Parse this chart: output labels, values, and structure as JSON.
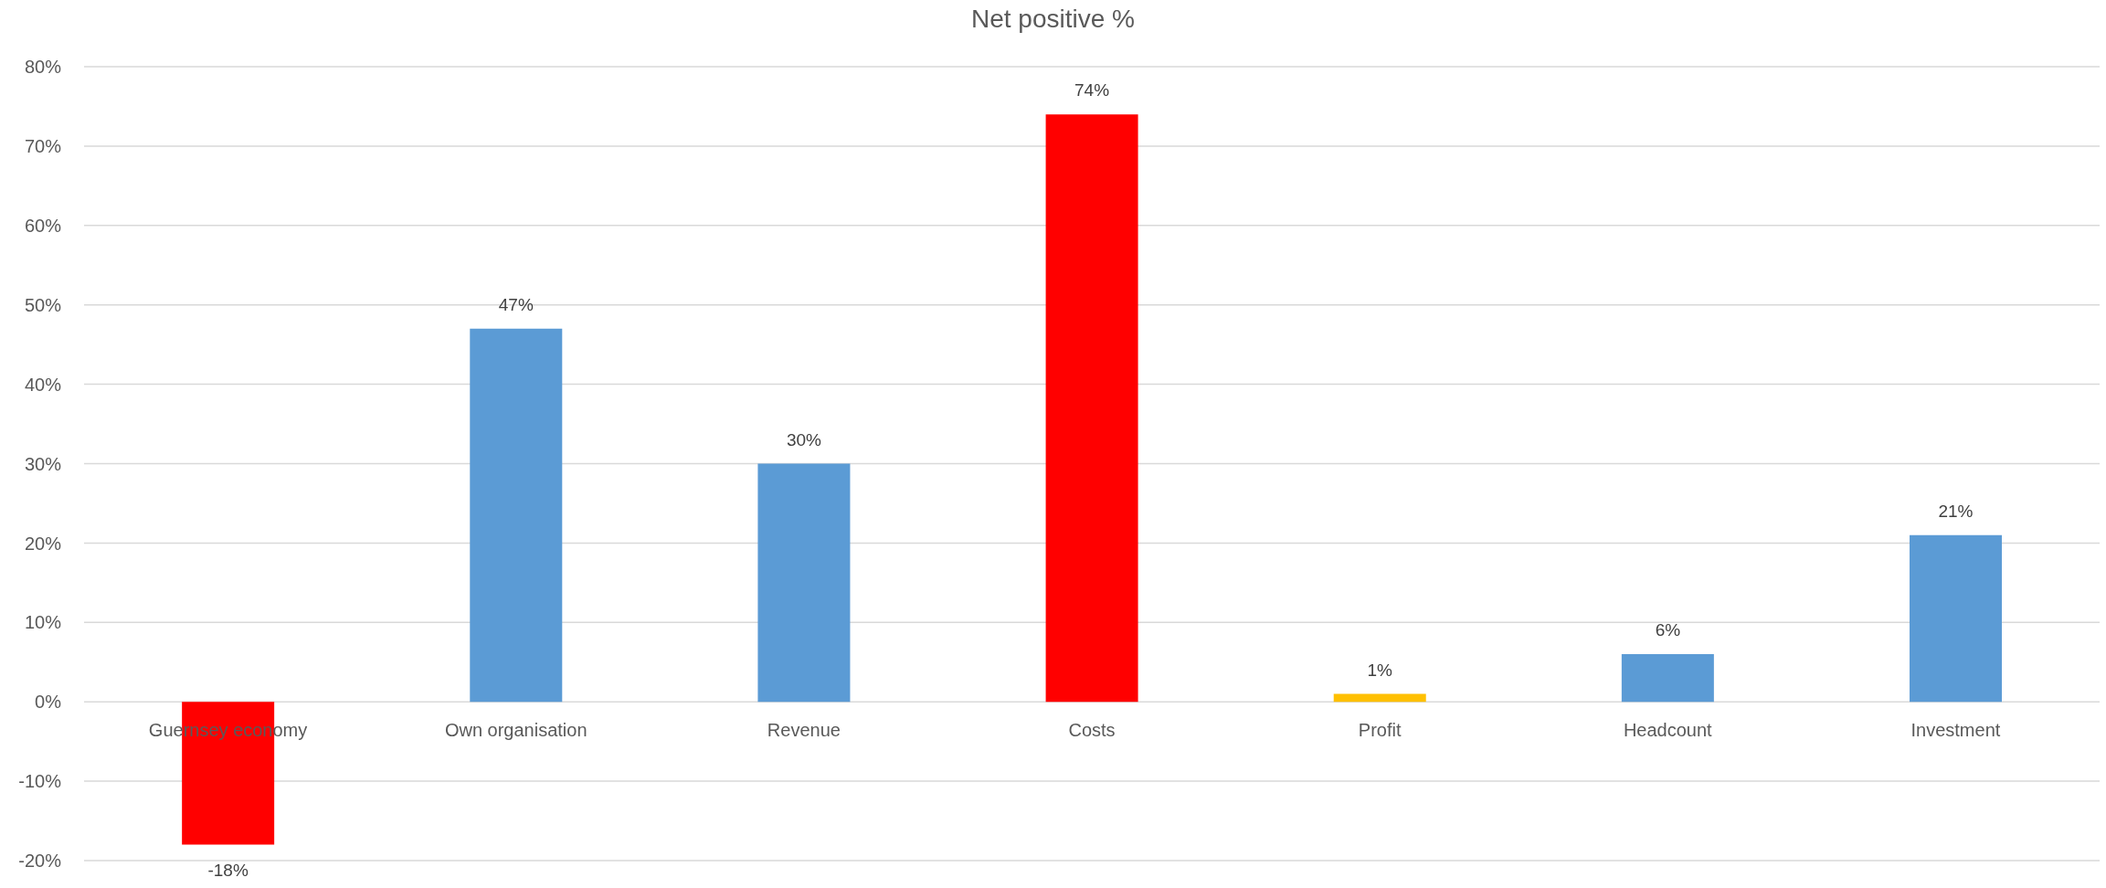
{
  "chart_data": {
    "type": "bar",
    "title": "Net positive %",
    "categories": [
      "Guernsey economy",
      "Own organisation",
      "Revenue",
      "Costs",
      "Profit",
      "Headcount",
      "Investment"
    ],
    "values": [
      -18,
      47,
      30,
      74,
      1,
      6,
      21
    ],
    "colors": [
      "#ff0000",
      "#5b9bd5",
      "#5b9bd5",
      "#ff0000",
      "#ffc000",
      "#5b9bd5",
      "#5b9bd5"
    ],
    "value_labels": [
      "-18%",
      "47%",
      "30%",
      "74%",
      "1%",
      "6%",
      "21%"
    ],
    "ylim": [
      -20,
      80
    ],
    "yticks": [
      {
        "value": -20,
        "label": "-20%"
      },
      {
        "value": -10,
        "label": "-10%"
      },
      {
        "value": 0,
        "label": "0%"
      },
      {
        "value": 10,
        "label": "10%"
      },
      {
        "value": 20,
        "label": "20%"
      },
      {
        "value": 30,
        "label": "30%"
      },
      {
        "value": 40,
        "label": "40%"
      },
      {
        "value": 50,
        "label": "50%"
      },
      {
        "value": 60,
        "label": "60%"
      },
      {
        "value": 70,
        "label": "70%"
      },
      {
        "value": 80,
        "label": "80%"
      }
    ],
    "grid": "y"
  }
}
